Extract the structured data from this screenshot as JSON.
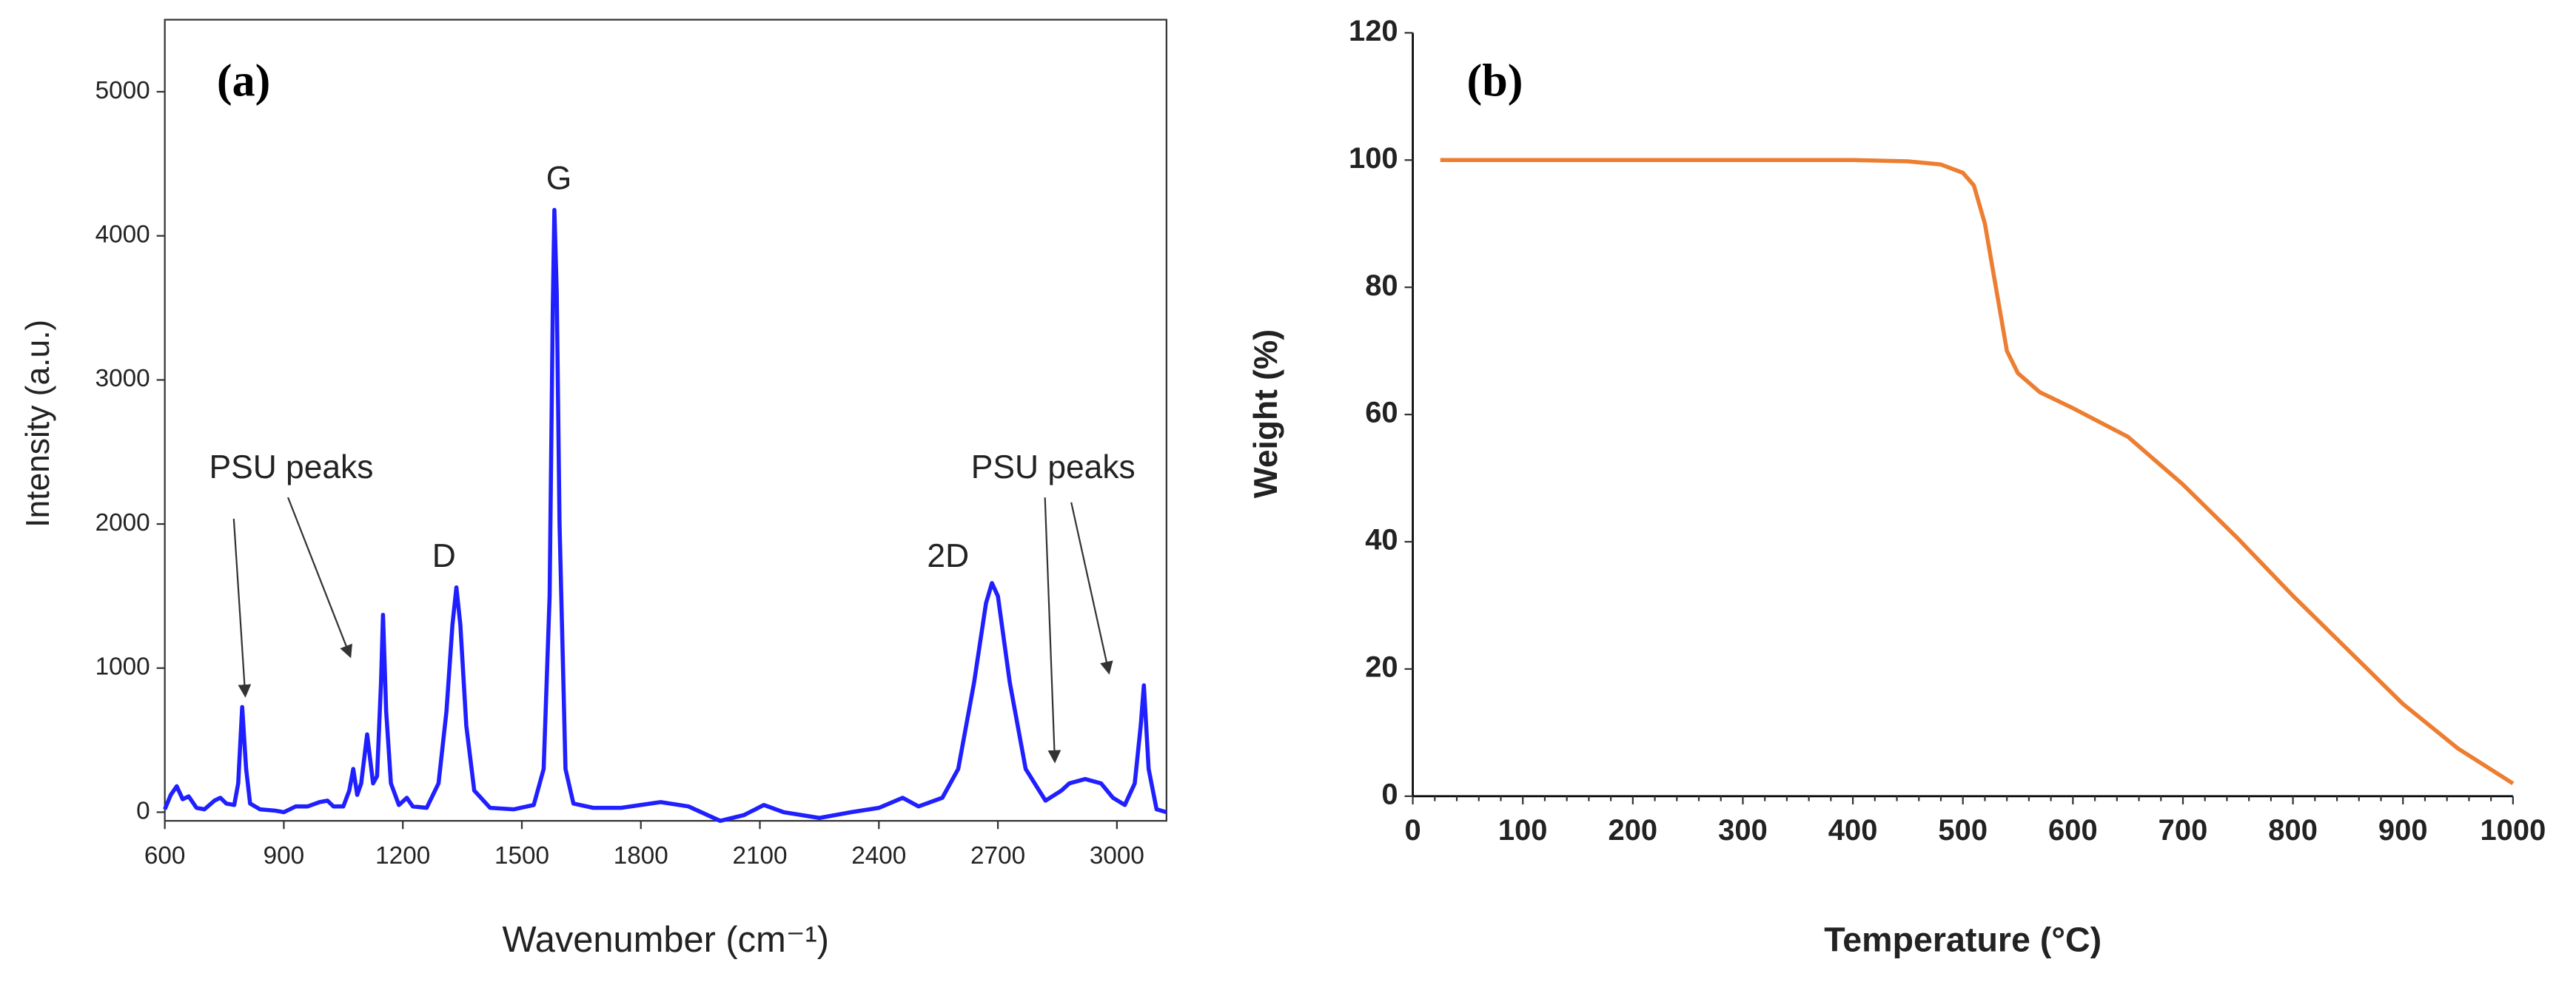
{
  "chart_data": [
    {
      "type": "line",
      "title": "(a)",
      "x_label": "Wavenumber (cm⁻¹)",
      "y_label": "Intensity (a.u.)",
      "annotations": [
        "G",
        "D",
        "2D",
        "PSU peaks",
        "PSU peaks"
      ],
      "color": "#1f1fff",
      "xlim": [
        600,
        3125
      ],
      "ylim": [
        -60,
        5500
      ],
      "xticks": [
        600,
        900,
        1200,
        1500,
        1800,
        2100,
        2400,
        2700,
        3000
      ],
      "yticks": [
        0,
        1000,
        2000,
        3000,
        4000,
        5000
      ],
      "x": [
        600,
        615,
        630,
        645,
        660,
        680,
        700,
        725,
        740,
        755,
        775,
        785,
        795,
        805,
        815,
        840,
        880,
        900,
        930,
        960,
        990,
        1010,
        1025,
        1050,
        1065,
        1075,
        1085,
        1095,
        1110,
        1125,
        1135,
        1145,
        1150,
        1158,
        1170,
        1190,
        1210,
        1225,
        1260,
        1290,
        1310,
        1325,
        1335,
        1345,
        1360,
        1380,
        1420,
        1480,
        1530,
        1555,
        1570,
        1578,
        1582,
        1588,
        1595,
        1610,
        1630,
        1680,
        1750,
        1850,
        1920,
        2000,
        2060,
        2110,
        2160,
        2250,
        2330,
        2400,
        2460,
        2500,
        2560,
        2600,
        2640,
        2670,
        2685,
        2700,
        2730,
        2770,
        2820,
        2860,
        2880,
        2920,
        2960,
        2990,
        3020,
        3045,
        3060,
        3068,
        3080,
        3100,
        3125
      ],
      "values": [
        20,
        120,
        180,
        90,
        110,
        30,
        20,
        80,
        100,
        60,
        50,
        200,
        730,
        300,
        60,
        20,
        10,
        0,
        40,
        40,
        70,
        80,
        40,
        40,
        150,
        300,
        120,
        200,
        540,
        200,
        250,
        900,
        1370,
        700,
        200,
        50,
        100,
        40,
        30,
        200,
        700,
        1300,
        1560,
        1300,
        600,
        150,
        30,
        20,
        50,
        300,
        1500,
        3500,
        4180,
        3600,
        2000,
        300,
        60,
        30,
        30,
        70,
        40,
        -60,
        -20,
        50,
        0,
        -40,
        0,
        30,
        100,
        40,
        100,
        300,
        900,
        1450,
        1590,
        1500,
        900,
        300,
        80,
        150,
        200,
        230,
        200,
        100,
        50,
        200,
        600,
        880,
        300,
        20,
        0
      ]
    },
    {
      "type": "line",
      "title": "(b)",
      "x_label": "Temperature  (°C)",
      "y_label": "Weight (%)",
      "color": "#ed7d31",
      "xlim": [
        0,
        1000
      ],
      "ylim": [
        0,
        120
      ],
      "xticks": [
        0,
        100,
        200,
        300,
        400,
        500,
        600,
        700,
        800,
        900,
        1000
      ],
      "yticks": [
        0,
        20,
        40,
        60,
        80,
        100,
        120
      ],
      "x": [
        25,
        100,
        200,
        300,
        400,
        450,
        480,
        500,
        510,
        520,
        530,
        540,
        550,
        570,
        600,
        650,
        700,
        750,
        800,
        850,
        900,
        950,
        1000
      ],
      "values": [
        100,
        100,
        100,
        100,
        100,
        99.8,
        99.3,
        98,
        96,
        90,
        80,
        70,
        66.5,
        63.5,
        61,
        56.5,
        49,
        40.5,
        31.5,
        23,
        14.5,
        7.5,
        2
      ]
    }
  ]
}
